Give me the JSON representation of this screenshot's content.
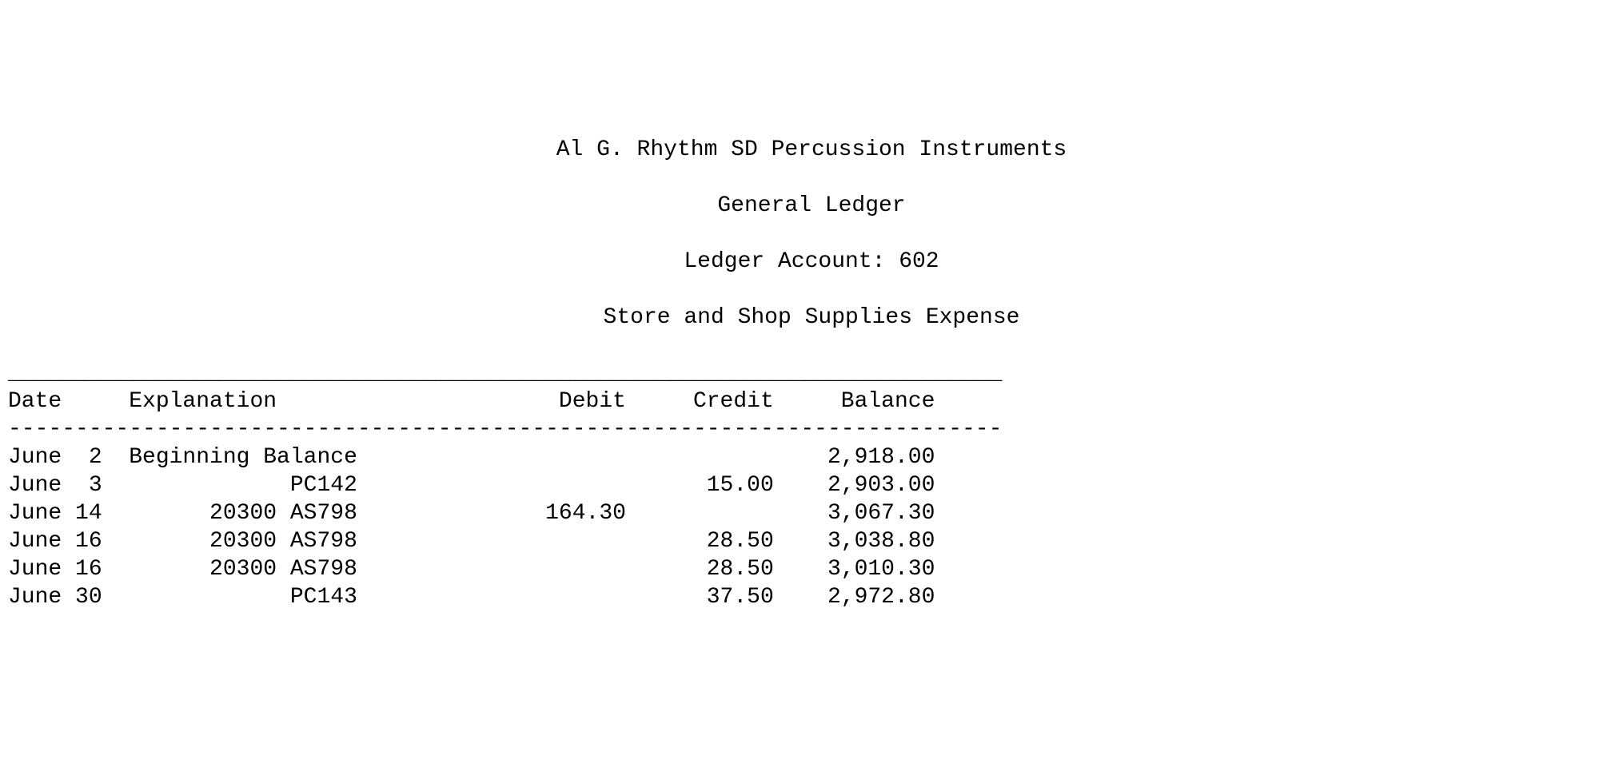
{
  "header": {
    "company": "Al G. Rhythm SD Percussion Instruments",
    "report": "General Ledger",
    "account_line": "Ledger Account: 602",
    "account_name": "Store and Shop Supplies Expense"
  },
  "columns": {
    "date": "Date",
    "explanation": "Explanation",
    "debit": "Debit",
    "credit": "Credit",
    "balance": "Balance"
  },
  "rows": [
    {
      "date": "June  2",
      "explanation": "Beginning Balance",
      "debit": "",
      "credit": "",
      "balance": "2,918.00"
    },
    {
      "date": "June  3",
      "explanation": "            PC142",
      "debit": "",
      "credit": "15.00",
      "balance": "2,903.00"
    },
    {
      "date": "June 14",
      "explanation": "      20300 AS798",
      "debit": "164.30",
      "credit": "",
      "balance": "3,067.30"
    },
    {
      "date": "June 16",
      "explanation": "      20300 AS798",
      "debit": "",
      "credit": "28.50",
      "balance": "3,038.80"
    },
    {
      "date": "June 16",
      "explanation": "      20300 AS798",
      "debit": "",
      "credit": "28.50",
      "balance": "3,010.30"
    },
    {
      "date": "June 30",
      "explanation": "            PC143",
      "debit": "",
      "credit": "37.50",
      "balance": "2,972.80"
    }
  ],
  "style": {
    "font_family": "Courier New",
    "font_size_pt": 21,
    "text_color": "#000000",
    "background_color": "#ffffff",
    "col_widths": {
      "date_day": 8,
      "explanation": 18,
      "debit": 19,
      "credit": 11,
      "balance": 12
    },
    "hr_char_top": "_",
    "hr_char_mid": "-",
    "hr_width": 74
  }
}
